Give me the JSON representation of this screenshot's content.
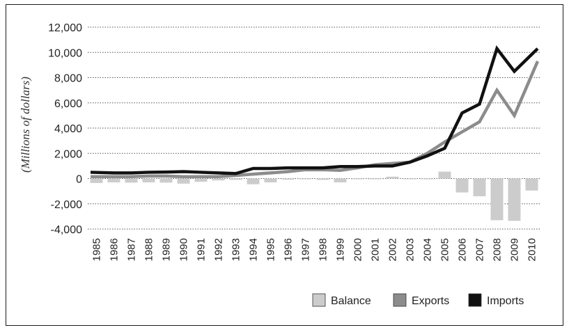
{
  "chart_data": {
    "type": "bar+line",
    "title": "",
    "xlabel": "",
    "ylabel": "(Millions of dollars)",
    "ylim": [
      -4000,
      12000
    ],
    "yticks": [
      12000,
      10000,
      8000,
      6000,
      4000,
      2000,
      0,
      -2000,
      -4000
    ],
    "ytick_labels": [
      "12,000",
      "10,000",
      "8,000",
      "6,000",
      "4,000",
      "2,000",
      "0",
      "-2,000",
      "-4,000"
    ],
    "grid": true,
    "legend_position": "bottom-right",
    "categories": [
      "1985",
      "1986",
      "1987",
      "1988",
      "1989",
      "1990",
      "1991",
      "1992",
      "1993",
      "1994",
      "1995",
      "1996",
      "1997",
      "1998",
      "1999",
      "2000",
      "2001",
      "2002",
      "2003",
      "2004",
      "2005",
      "2006",
      "2007",
      "2008",
      "2009",
      "2010"
    ],
    "series": [
      {
        "name": "Balance",
        "type": "bar",
        "color": "#cccccc",
        "values": [
          -350,
          -300,
          -320,
          -300,
          -320,
          -400,
          -250,
          -150,
          -100,
          -450,
          -300,
          -80,
          -50,
          -100,
          -300,
          -50,
          -50,
          150,
          -50,
          -50,
          550,
          -1100,
          -1400,
          -3300,
          -3350,
          -950
        ]
      },
      {
        "name": "Exports",
        "type": "line",
        "color": "#8c8c8c",
        "values": [
          150,
          150,
          150,
          200,
          200,
          150,
          150,
          150,
          250,
          350,
          450,
          550,
          700,
          700,
          650,
          850,
          1100,
          1200,
          1300,
          2000,
          2900,
          3700,
          4500,
          7000,
          5000,
          9300
        ]
      },
      {
        "name": "Imports",
        "type": "line",
        "color": "#111111",
        "values": [
          500,
          450,
          450,
          500,
          520,
          550,
          500,
          450,
          400,
          800,
          800,
          850,
          850,
          850,
          950,
          950,
          1000,
          1000,
          1300,
          1800,
          2400,
          5200,
          5900,
          10300,
          8500,
          10300
        ]
      }
    ]
  }
}
